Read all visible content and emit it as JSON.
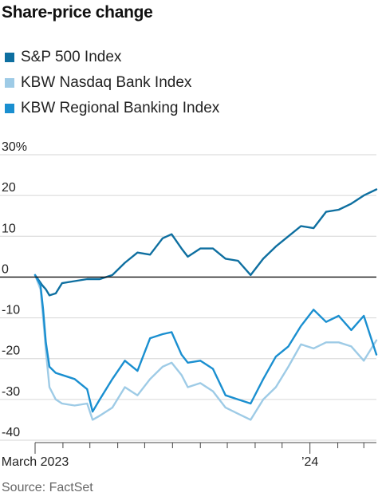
{
  "chart_data": {
    "type": "line",
    "title": "Share-price change",
    "source": "Source: FactSet",
    "y_unit_suffix": "%",
    "ylim": [
      -40,
      30
    ],
    "y_ticks": [
      30,
      20,
      10,
      0,
      -10,
      -20,
      -30,
      -40
    ],
    "y_tick_labels": [
      "30%",
      "20",
      "10",
      "0",
      "-10",
      "-20",
      "-30",
      "-40"
    ],
    "x_tick_labels": [
      "March 2023",
      "’24"
    ],
    "x_range": [
      "2023-03-01",
      "2024-03-15"
    ],
    "x_ticks": [
      "2023-03-01",
      "2023-04-01",
      "2023-05-01",
      "2023-06-01",
      "2023-07-01",
      "2023-08-01",
      "2023-09-01",
      "2023-10-01",
      "2023-11-01",
      "2023-12-01",
      "2024-01-01",
      "2024-02-01",
      "2024-03-01"
    ],
    "x_labeled_ticks": [
      "2023-03-01",
      "2024-01-01"
    ],
    "grid": "horizontal",
    "zero_line": true,
    "series": [
      {
        "name": "S&P 500 Index",
        "color": "#0e6fa0",
        "x": [
          "2023-03-01",
          "2023-03-09",
          "2023-03-13",
          "2023-03-17",
          "2023-03-24",
          "2023-03-31",
          "2023-04-14",
          "2023-04-28",
          "2023-05-12",
          "2023-05-26",
          "2023-06-09",
          "2023-06-23",
          "2023-07-07",
          "2023-07-21",
          "2023-07-31",
          "2023-08-11",
          "2023-08-18",
          "2023-09-01",
          "2023-09-15",
          "2023-09-29",
          "2023-10-13",
          "2023-10-27",
          "2023-11-10",
          "2023-11-24",
          "2023-12-08",
          "2023-12-22",
          "2024-01-05",
          "2024-01-19",
          "2024-02-02",
          "2024-02-16",
          "2024-03-01",
          "2024-03-15"
        ],
        "values": [
          0.5,
          -2.0,
          -3.0,
          -4.5,
          -4.0,
          -1.5,
          -1.0,
          -0.5,
          -0.5,
          0.5,
          3.5,
          6.0,
          5.5,
          9.5,
          10.5,
          7.0,
          5.0,
          7.0,
          7.0,
          4.5,
          4.0,
          0.5,
          4.5,
          7.5,
          10.0,
          12.5,
          12.0,
          16.0,
          16.5,
          18.0,
          20.0,
          21.5
        ]
      },
      {
        "name": "KBW Nasdaq Bank Index",
        "color": "#9ecbe6",
        "x": [
          "2023-03-01",
          "2023-03-07",
          "2023-03-10",
          "2023-03-13",
          "2023-03-17",
          "2023-03-24",
          "2023-03-31",
          "2023-04-14",
          "2023-04-28",
          "2023-05-04",
          "2023-05-12",
          "2023-05-26",
          "2023-06-09",
          "2023-06-23",
          "2023-07-07",
          "2023-07-21",
          "2023-07-31",
          "2023-08-11",
          "2023-08-18",
          "2023-09-01",
          "2023-09-15",
          "2023-09-29",
          "2023-10-13",
          "2023-10-27",
          "2023-11-10",
          "2023-11-24",
          "2023-12-08",
          "2023-12-22",
          "2024-01-05",
          "2024-01-19",
          "2024-02-02",
          "2024-02-16",
          "2024-03-01",
          "2024-03-15"
        ],
        "values": [
          0.5,
          -3.0,
          -10.0,
          -18.0,
          -27.0,
          -30.0,
          -31.0,
          -31.5,
          -31.0,
          -35.0,
          -34.0,
          -32.0,
          -27.0,
          -29.0,
          -25.0,
          -22.0,
          -21.0,
          -24.0,
          -27.0,
          -26.0,
          -28.0,
          -32.0,
          -33.5,
          -35.0,
          -30.0,
          -27.0,
          -22.0,
          -16.5,
          -17.5,
          -16.0,
          -16.0,
          -17.0,
          -20.5,
          -15.5
        ]
      },
      {
        "name": "KBW Regional Banking Index",
        "color": "#1a8fd0",
        "x": [
          "2023-03-01",
          "2023-03-07",
          "2023-03-10",
          "2023-03-13",
          "2023-03-17",
          "2023-03-24",
          "2023-03-31",
          "2023-04-14",
          "2023-04-28",
          "2023-05-04",
          "2023-05-12",
          "2023-05-26",
          "2023-06-09",
          "2023-06-23",
          "2023-07-07",
          "2023-07-21",
          "2023-07-31",
          "2023-08-11",
          "2023-08-18",
          "2023-09-01",
          "2023-09-15",
          "2023-09-29",
          "2023-10-13",
          "2023-10-27",
          "2023-11-10",
          "2023-11-24",
          "2023-12-08",
          "2023-12-22",
          "2024-01-05",
          "2024-01-19",
          "2024-02-02",
          "2024-02-16",
          "2024-03-01",
          "2024-03-15"
        ],
        "values": [
          0.5,
          -2.0,
          -8.0,
          -16.0,
          -22.0,
          -23.5,
          -24.0,
          -25.0,
          -27.5,
          -33.0,
          -30.0,
          -25.0,
          -20.5,
          -23.0,
          -15.0,
          -14.0,
          -13.5,
          -19.0,
          -21.0,
          -20.5,
          -22.5,
          -29.0,
          -30.0,
          -31.0,
          -25.0,
          -19.5,
          -17.0,
          -12.0,
          -8.0,
          -11.0,
          -9.5,
          -13.0,
          -9.5,
          -19.0
        ]
      }
    ]
  }
}
